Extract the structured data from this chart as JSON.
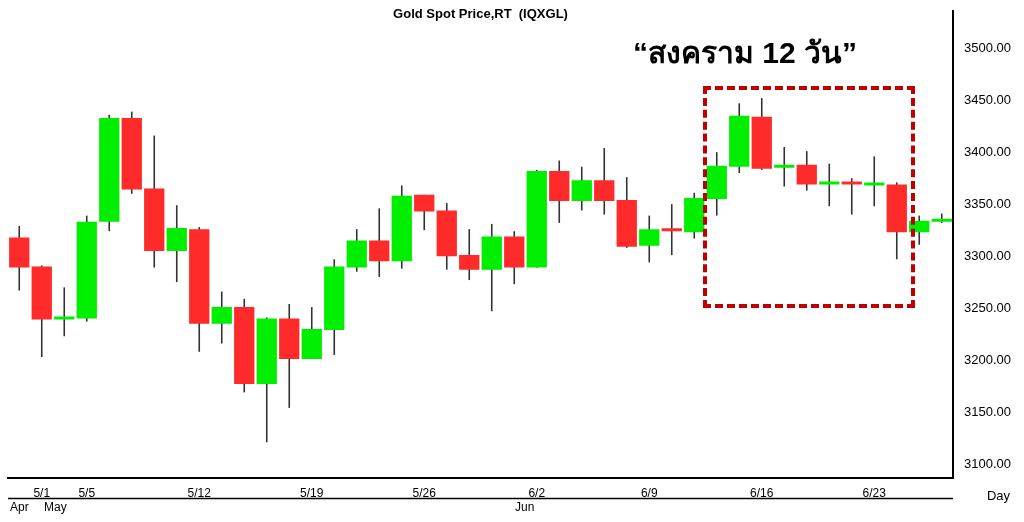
{
  "chart_data": {
    "type": "candlestick",
    "title": "Gold Spot Price,RT  (IQXGL)",
    "categories": [
      null,
      "5/1",
      null,
      "5/5",
      null,
      null,
      null,
      null,
      "5/12",
      null,
      null,
      null,
      null,
      "5/19",
      null,
      null,
      null,
      null,
      "5/26",
      null,
      null,
      null,
      null,
      "6/2",
      null,
      null,
      null,
      null,
      "6/9",
      null,
      null,
      null,
      null,
      "6/16",
      null,
      null,
      null,
      null,
      "6/23",
      null,
      null,
      null
    ],
    "ohlc": [
      [
        3318,
        3329,
        3267,
        3289
      ],
      [
        3290,
        3291,
        3203,
        3239
      ],
      [
        3239,
        3270,
        3223,
        3241
      ],
      [
        3240,
        3339,
        3237,
        3333
      ],
      [
        3333,
        3436,
        3324,
        3433
      ],
      [
        3433,
        3439,
        3360,
        3364
      ],
      [
        3365,
        3416,
        3289,
        3305
      ],
      [
        3305,
        3349,
        3275,
        3327
      ],
      [
        3326,
        3328,
        3208,
        3235
      ],
      [
        3235,
        3266,
        3216,
        3251
      ],
      [
        3251,
        3259,
        3169,
        3177
      ],
      [
        3177,
        3241,
        3121,
        3240
      ],
      [
        3240,
        3254,
        3154,
        3201
      ],
      [
        3201,
        3251,
        3201,
        3230
      ],
      [
        3229,
        3297,
        3205,
        3290
      ],
      [
        3289,
        3326,
        3285,
        3315
      ],
      [
        3315,
        3346,
        3280,
        3295
      ],
      [
        3295,
        3368,
        3288,
        3358
      ],
      [
        3359,
        3359,
        3325,
        3343
      ],
      [
        3344,
        3351,
        3287,
        3300
      ],
      [
        3301,
        3326,
        3277,
        3287
      ],
      [
        3287,
        3331,
        3247,
        3319
      ],
      [
        3319,
        3324,
        3273,
        3289
      ],
      [
        3289,
        3383,
        3289,
        3382
      ],
      [
        3382,
        3392,
        3332,
        3353
      ],
      [
        3353,
        3386,
        3344,
        3373
      ],
      [
        3373,
        3404,
        3340,
        3353
      ],
      [
        3354,
        3376,
        3308,
        3309
      ],
      [
        3310,
        3339,
        3294,
        3326
      ],
      [
        3325,
        3350,
        3301,
        3324
      ],
      [
        3323,
        3361,
        3317,
        3356
      ],
      [
        3355,
        3400,
        3339,
        3387
      ],
      [
        3386,
        3447,
        3380,
        3435
      ],
      [
        3434,
        3452,
        3383,
        3384
      ],
      [
        3385,
        3405,
        3367,
        3388
      ],
      [
        3388,
        3401,
        3363,
        3369
      ],
      [
        3369,
        3389,
        3348,
        3370
      ],
      [
        3370,
        3375,
        3340,
        3369
      ],
      [
        3368,
        3396,
        3348,
        3369
      ],
      [
        3369,
        3371,
        3297,
        3323
      ],
      [
        3323,
        3339,
        3311,
        3334
      ],
      [
        3333,
        3341,
        3332,
        3335
      ]
    ],
    "colors": [
      "#ff2a2a",
      "#ff2a2a",
      "#00ee00",
      "#00ee00",
      "#00ee00",
      "#ff2a2a",
      "#ff2a2a",
      "#00ee00",
      "#ff2a2a",
      "#00ee00",
      "#ff2a2a",
      "#00ee00",
      "#ff2a2a",
      "#00ee00",
      "#00ee00",
      "#00ee00",
      "#ff2a2a",
      "#00ee00",
      "#ff2a2a",
      "#ff2a2a",
      "#ff2a2a",
      "#00ee00",
      "#ff2a2a",
      "#00ee00",
      "#ff2a2a",
      "#00ee00",
      "#ff2a2a",
      "#ff2a2a",
      "#00ee00",
      "#ff2a2a",
      "#00ee00",
      "#00ee00",
      "#00ee00",
      "#ff2a2a",
      "#00ee00",
      "#ff2a2a",
      "#00ee00",
      "#ff2a2a",
      "#00ee00",
      "#ff2a2a",
      "#00ee00",
      "#00ee00"
    ],
    "ylim": [
      3087,
      3536
    ],
    "yticks": [
      {
        "value": 3100,
        "label": "3100.00"
      },
      {
        "value": 3150,
        "label": "3150.00"
      },
      {
        "value": 3200,
        "label": "3200.00"
      },
      {
        "value": 3250,
        "label": "3250.00"
      },
      {
        "value": 3300,
        "label": "3300.00"
      },
      {
        "value": 3350,
        "label": "3350.00"
      },
      {
        "value": 3400,
        "label": "3400.00"
      },
      {
        "value": 3450,
        "label": "3450.00"
      },
      {
        "value": 3500,
        "label": "3500.00"
      }
    ],
    "grid": false,
    "legend": false,
    "annotations": [
      "Apr",
      "May",
      "Jun",
      "Day",
      "“สงคราม 12 วัน”"
    ]
  }
}
